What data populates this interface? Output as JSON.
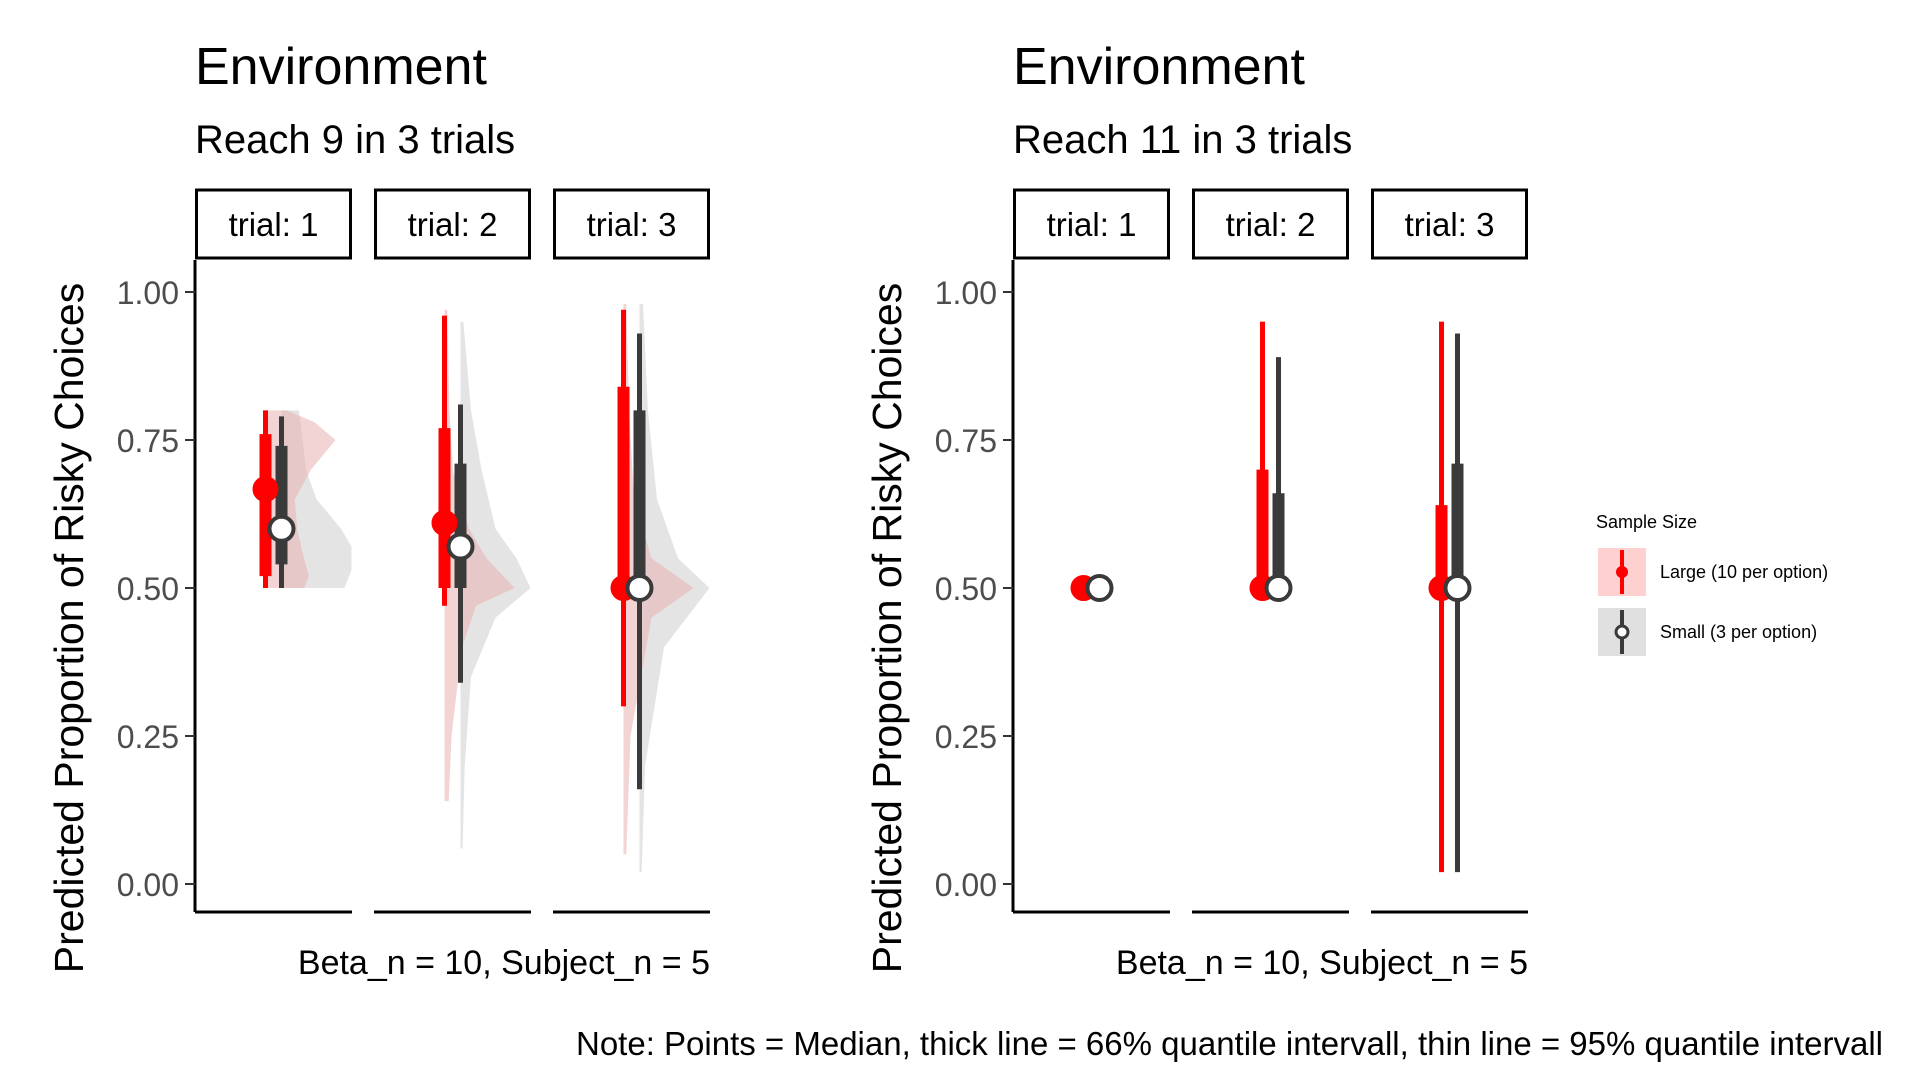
{
  "chart_data": [
    {
      "type": "violin-interval",
      "title": "Environment",
      "subtitle": "Reach 9 in 3 trials",
      "ylabel": "Predicted Proportion of Risky Choices",
      "caption": "Beta_n = 10, Subject_n = 5",
      "ylim": [
        0,
        1
      ],
      "yticks": [
        "0.00",
        "0.25",
        "0.50",
        "0.75",
        "1.00"
      ],
      "facets": [
        {
          "label": "trial: 1",
          "series": [
            {
              "name": "Large (10 per option)",
              "median": 0.667,
              "q66": [
                0.52,
                0.76
              ],
              "q95": [
                0.5,
                0.8
              ],
              "density": [
                [
                  0.5,
                  0.55
                ],
                [
                  0.52,
                  0.62
                ],
                [
                  0.55,
                  0.55
                ],
                [
                  0.6,
                  0.45
                ],
                [
                  0.65,
                  0.42
                ],
                [
                  0.7,
                  0.65
                ],
                [
                  0.75,
                  1.0
                ],
                [
                  0.78,
                  0.7
                ],
                [
                  0.8,
                  0.3
                ]
              ]
            },
            {
              "name": "Small (3 per option)",
              "median": 0.6,
              "q66": [
                0.54,
                0.74
              ],
              "q95": [
                0.5,
                0.79
              ],
              "density": [
                [
                  0.5,
                  0.9
                ],
                [
                  0.53,
                  1.0
                ],
                [
                  0.57,
                  1.0
                ],
                [
                  0.6,
                  0.85
                ],
                [
                  0.65,
                  0.5
                ],
                [
                  0.7,
                  0.35
                ],
                [
                  0.75,
                  0.3
                ],
                [
                  0.8,
                  0.25
                ]
              ]
            }
          ]
        },
        {
          "label": "trial: 2",
          "series": [
            {
              "name": "Large (10 per option)",
              "median": 0.61,
              "q66": [
                0.5,
                0.77
              ],
              "q95": [
                0.47,
                0.96
              ],
              "density": [
                [
                  0.14,
                  0.06
                ],
                [
                  0.25,
                  0.1
                ],
                [
                  0.4,
                  0.25
                ],
                [
                  0.47,
                  0.45
                ],
                [
                  0.5,
                  1.0
                ],
                [
                  0.55,
                  0.6
                ],
                [
                  0.6,
                  0.35
                ],
                [
                  0.65,
                  0.22
                ],
                [
                  0.7,
                  0.12
                ],
                [
                  0.8,
                  0.07
                ],
                [
                  0.97,
                  0.04
                ]
              ]
            },
            {
              "name": "Small (3 per option)",
              "median": 0.57,
              "q66": [
                0.5,
                0.71
              ],
              "q95": [
                0.34,
                0.81
              ],
              "density": [
                [
                  0.06,
                  0.03
                ],
                [
                  0.2,
                  0.06
                ],
                [
                  0.35,
                  0.15
                ],
                [
                  0.45,
                  0.5
                ],
                [
                  0.5,
                  1.0
                ],
                [
                  0.55,
                  0.8
                ],
                [
                  0.6,
                  0.5
                ],
                [
                  0.7,
                  0.3
                ],
                [
                  0.8,
                  0.15
                ],
                [
                  0.95,
                  0.04
                ]
              ]
            }
          ]
        },
        {
          "label": "trial: 3",
          "series": [
            {
              "name": "Large (10 per option)",
              "median": 0.5,
              "q66": [
                0.5,
                0.84
              ],
              "q95": [
                0.3,
                0.97
              ],
              "density": [
                [
                  0.05,
                  0.04
                ],
                [
                  0.25,
                  0.1
                ],
                [
                  0.45,
                  0.4
                ],
                [
                  0.5,
                  1.0
                ],
                [
                  0.55,
                  0.4
                ],
                [
                  0.65,
                  0.15
                ],
                [
                  0.8,
                  0.08
                ],
                [
                  0.98,
                  0.04
                ]
              ]
            },
            {
              "name": "Small (3 per option)",
              "median": 0.5,
              "q66": [
                0.5,
                0.8
              ],
              "q95": [
                0.16,
                0.93
              ],
              "density": [
                [
                  0.02,
                  0.03
                ],
                [
                  0.2,
                  0.08
                ],
                [
                  0.4,
                  0.35
                ],
                [
                  0.5,
                  1.0
                ],
                [
                  0.55,
                  0.55
                ],
                [
                  0.65,
                  0.25
                ],
                [
                  0.8,
                  0.12
                ],
                [
                  0.98,
                  0.05
                ]
              ]
            }
          ]
        }
      ]
    },
    {
      "type": "violin-interval",
      "title": "Environment",
      "subtitle": "Reach 11 in 3 trials",
      "ylabel": "Predicted Proportion of Risky Choices",
      "caption": "Beta_n = 10, Subject_n = 5",
      "ylim": [
        0,
        1
      ],
      "yticks": [
        "0.00",
        "0.25",
        "0.50",
        "0.75",
        "1.00"
      ],
      "facets": [
        {
          "label": "trial: 1",
          "series": [
            {
              "name": "Large (10 per option)",
              "median": 0.5,
              "q66": [
                0.5,
                0.5
              ],
              "q95": [
                0.5,
                0.5
              ],
              "density": []
            },
            {
              "name": "Small (3 per option)",
              "median": 0.5,
              "q66": [
                0.5,
                0.5
              ],
              "q95": [
                0.5,
                0.5
              ],
              "density": []
            }
          ]
        },
        {
          "label": "trial: 2",
          "series": [
            {
              "name": "Large (10 per option)",
              "median": 0.5,
              "q66": [
                0.5,
                0.7
              ],
              "q95": [
                0.5,
                0.95
              ],
              "density": []
            },
            {
              "name": "Small (3 per option)",
              "median": 0.5,
              "q66": [
                0.5,
                0.66
              ],
              "q95": [
                0.5,
                0.89
              ],
              "density": []
            }
          ]
        },
        {
          "label": "trial: 3",
          "series": [
            {
              "name": "Large (10 per option)",
              "median": 0.5,
              "q66": [
                0.5,
                0.64
              ],
              "q95": [
                0.02,
                0.95
              ],
              "density": []
            },
            {
              "name": "Small (3 per option)",
              "median": 0.5,
              "q66": [
                0.5,
                0.71
              ],
              "q95": [
                0.02,
                0.93
              ],
              "density": []
            }
          ]
        }
      ]
    }
  ],
  "legend": {
    "title": "Sample Size",
    "items": [
      {
        "label": "Large (10 per option)",
        "color": "#ff0000",
        "fill": "#ffd0d0",
        "marker": "filled"
      },
      {
        "label": "Small (3 per option)",
        "color": "#3a3a3a",
        "fill": "#e0e0e0",
        "marker": "open"
      }
    ]
  },
  "note": "Note: Points = Median, thick line = 66% quantile intervall, thin line = 95% quantile intervall",
  "colors": {
    "large": "#ff0000",
    "large_fill": "#e8b0b0",
    "small": "#3a3a3a",
    "small_fill": "#d8d8d8",
    "text": "#000000",
    "tick_text": "#4d4d4d"
  }
}
